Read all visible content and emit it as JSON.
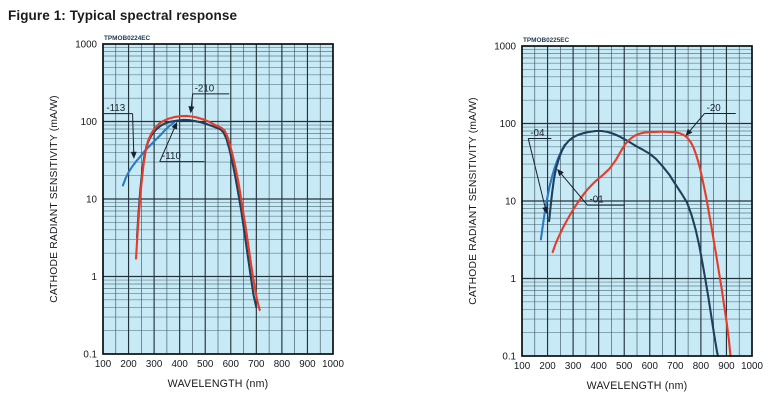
{
  "figure_title": "Figure 1: Typical spectral response",
  "colors": {
    "plot_bg": "#c8eaf6",
    "grid_major": "#22333b",
    "grid_minor_x": "#41565f",
    "grid_minor_y": "#5e7d8b",
    "border": "#0a0f12",
    "tick_text": "#14191d",
    "axis_title_text": "#14191d",
    "annotation": "#16222c",
    "id_label_color": "#1c3a57",
    "series_blue": "#2b7ac4",
    "series_dark": "#20405a",
    "series_red": "#e63c28"
  },
  "chart_data": [
    {
      "type": "line",
      "id_label": "TPMOB0224EC",
      "xlabel": "WAVELENGTH (nm)",
      "ylabel": "CATHODE RADIANT SENSITIVITY (mA/W)",
      "xlim": [
        100,
        1000
      ],
      "ylim_log": [
        0.1,
        1000
      ],
      "x_ticks": [
        100,
        200,
        300,
        400,
        500,
        600,
        700,
        800,
        900,
        1000
      ],
      "y_ticks": [
        "1000",
        "100",
        "10",
        "1",
        "0.1"
      ],
      "grid": true,
      "series": [
        {
          "name": "-113",
          "color_key": "series_blue",
          "points": [
            [
              178,
              15
            ],
            [
              190,
              19
            ],
            [
              203,
              23
            ],
            [
              217,
              27
            ],
            [
              231,
              31
            ],
            [
              245,
              35
            ],
            [
              259,
              40
            ],
            [
              273,
              45
            ],
            [
              287,
              50
            ],
            [
              301,
              56
            ],
            [
              315,
              62
            ],
            [
              329,
              69
            ],
            [
              342,
              77
            ],
            [
              355,
              85
            ],
            [
              366,
              91
            ],
            [
              378,
              97
            ]
          ]
        },
        {
          "name": "-110",
          "color_key": "series_dark",
          "points": [
            [
              233,
              3.2
            ],
            [
              239,
              6.5
            ],
            [
              246,
              13
            ],
            [
              254,
              24
            ],
            [
              262,
              36
            ],
            [
              271,
              49
            ],
            [
              282,
              60
            ],
            [
              294,
              70
            ],
            [
              308,
              79
            ],
            [
              325,
              88
            ],
            [
              345,
              95
            ],
            [
              368,
              100
            ],
            [
              392,
              103
            ],
            [
              415,
              105
            ],
            [
              438,
              104
            ],
            [
              462,
              101
            ],
            [
              486,
              97
            ],
            [
              508,
              92
            ],
            [
              528,
              87
            ],
            [
              545,
              83
            ],
            [
              560,
              79
            ],
            [
              572,
              72
            ],
            [
              583,
              60
            ],
            [
              594,
              45
            ],
            [
              605,
              31
            ],
            [
              617,
              20
            ],
            [
              629,
              12
            ],
            [
              641,
              7
            ],
            [
              653,
              3.8
            ],
            [
              665,
              2
            ],
            [
              677,
              1.05
            ],
            [
              689,
              0.58
            ],
            [
              700,
              0.4
            ]
          ]
        },
        {
          "name": "-210",
          "color_key": "series_red",
          "points": [
            [
              229,
              1.7
            ],
            [
              235,
              3.5
            ],
            [
              242,
              7.5
            ],
            [
              250,
              15
            ],
            [
              258,
              27
            ],
            [
              267,
              42
            ],
            [
              277,
              57
            ],
            [
              289,
              70
            ],
            [
              303,
              82
            ],
            [
              319,
              93
            ],
            [
              337,
              102
            ],
            [
              357,
              109
            ],
            [
              379,
              114
            ],
            [
              402,
              117
            ],
            [
              425,
              118
            ],
            [
              448,
              116
            ],
            [
              471,
              112
            ],
            [
              494,
              106
            ],
            [
              515,
              99
            ],
            [
              533,
              92
            ],
            [
              549,
              87
            ],
            [
              563,
              83
            ],
            [
              575,
              77
            ],
            [
              586,
              65
            ],
            [
              597,
              50
            ],
            [
              608,
              36
            ],
            [
              620,
              24
            ],
            [
              632,
              15
            ],
            [
              644,
              8.5
            ],
            [
              656,
              4.8
            ],
            [
              668,
              2.6
            ],
            [
              680,
              1.4
            ],
            [
              692,
              0.78
            ],
            [
              703,
              0.5
            ],
            [
              713,
              0.37
            ]
          ]
        }
      ],
      "annotations": [
        {
          "text": "-113",
          "label": [
            150,
            150
          ],
          "tip": [
            221,
            33
          ],
          "from": "right",
          "ext": 6
        },
        {
          "text": "-210",
          "label": [
            497,
            270
          ],
          "tip": [
            443,
            127
          ],
          "from": "left",
          "ext": 14
        },
        {
          "text": "-110",
          "label": [
            368,
            36
          ],
          "tip": [
            390,
            99
          ],
          "from": "left",
          "ext": 22
        }
      ]
    },
    {
      "type": "line",
      "id_label": "TPMOB0225EC",
      "xlabel": "WAVELENGTH (nm)",
      "ylabel": "CATHODE RADIANT SENSITIVITY (mA/W)",
      "xlim": [
        100,
        1000
      ],
      "ylim_log": [
        0.1,
        1000
      ],
      "x_ticks": [
        100,
        200,
        300,
        400,
        500,
        600,
        700,
        800,
        900,
        1000
      ],
      "y_ticks": [
        "1000",
        "100",
        "10",
        "1",
        "0.1"
      ],
      "grid": true,
      "series": [
        {
          "name": "-04",
          "color_key": "series_blue",
          "points": [
            [
              174,
              3.2
            ],
            [
              182,
              5
            ],
            [
              190,
              7.5
            ],
            [
              199,
              11
            ],
            [
              208,
              15.5
            ],
            [
              218,
              21
            ],
            [
              228,
              27
            ],
            [
              238,
              33.5
            ],
            [
              248,
              40
            ],
            [
              258,
              47
            ],
            [
              267,
              53
            ]
          ]
        },
        {
          "name": "-01",
          "color_key": "series_dark",
          "points": [
            [
              206,
              5.5
            ],
            [
              212,
              8.5
            ],
            [
              218,
              13
            ],
            [
              225,
              19
            ],
            [
              234,
              27
            ],
            [
              245,
              36
            ],
            [
              257,
              45
            ],
            [
              269,
              53
            ],
            [
              283,
              60
            ],
            [
              299,
              66
            ],
            [
              318,
              71
            ],
            [
              340,
              75
            ],
            [
              363,
              78
            ],
            [
              388,
              80
            ],
            [
              412,
              80
            ],
            [
              434,
              78
            ],
            [
              456,
              74
            ],
            [
              478,
              69
            ],
            [
              500,
              63
            ],
            [
              523,
              57
            ],
            [
              547,
              51
            ],
            [
              572,
              46
            ],
            [
              598,
              41
            ],
            [
              624,
              35
            ],
            [
              650,
              28
            ],
            [
              676,
              22
            ],
            [
              700,
              16.5
            ],
            [
              724,
              12.5
            ],
            [
              746,
              9.5
            ],
            [
              764,
              6.5
            ],
            [
              780,
              4.2
            ],
            [
              794,
              2.6
            ],
            [
              806,
              1.6
            ],
            [
              817,
              1
            ],
            [
              829,
              0.58
            ],
            [
              841,
              0.32
            ],
            [
              853,
              0.18
            ],
            [
              864,
              0.11
            ],
            [
              867,
              0.1
            ]
          ]
        },
        {
          "name": "-20",
          "color_key": "series_red",
          "points": [
            [
              220,
              2.2
            ],
            [
              233,
              2.9
            ],
            [
              246,
              3.6
            ],
            [
              260,
              4.5
            ],
            [
              274,
              5.5
            ],
            [
              288,
              6.6
            ],
            [
              302,
              7.9
            ],
            [
              316,
              9.3
            ],
            [
              330,
              10.9
            ],
            [
              344,
              12.6
            ],
            [
              358,
              14.3
            ],
            [
              372,
              16
            ],
            [
              386,
              17.8
            ],
            [
              400,
              19.5
            ],
            [
              414,
              21.3
            ],
            [
              428,
              23.5
            ],
            [
              442,
              26
            ],
            [
              456,
              30
            ],
            [
              468,
              34
            ],
            [
              480,
              40
            ],
            [
              492,
              47
            ],
            [
              504,
              54
            ],
            [
              516,
              60
            ],
            [
              528,
              65
            ],
            [
              542,
              70
            ],
            [
              558,
              73.5
            ],
            [
              576,
              76
            ],
            [
              598,
              77.5
            ],
            [
              622,
              78
            ],
            [
              648,
              78.5
            ],
            [
              674,
              78
            ],
            [
              698,
              77
            ],
            [
              716,
              75
            ],
            [
              732,
              71.5
            ],
            [
              746,
              66
            ],
            [
              758,
              59
            ],
            [
              770,
              50
            ],
            [
              781,
              40
            ],
            [
              791,
              31
            ],
            [
              801,
              23
            ],
            [
              811,
              16
            ],
            [
              821,
              11
            ],
            [
              831,
              7.2
            ],
            [
              841,
              4.7
            ],
            [
              851,
              3
            ],
            [
              861,
              1.9
            ],
            [
              871,
              1.2
            ],
            [
              881,
              0.75
            ],
            [
              891,
              0.45
            ],
            [
              901,
              0.27
            ],
            [
              909,
              0.17
            ],
            [
              916,
              0.1
            ]
          ]
        }
      ],
      "annotations": [
        {
          "text": "-04",
          "label": [
            160,
            76
          ],
          "tip": [
            197,
            6.8
          ],
          "from": "left",
          "ext": 6
        },
        {
          "text": "-01",
          "label": [
            392,
            10.5
          ],
          "tip": [
            237,
            26
          ],
          "from": "left",
          "ext": 20
        },
        {
          "text": "-20",
          "label": [
            850,
            160
          ],
          "tip": [
            740,
            69
          ],
          "from": "left",
          "ext": 14
        }
      ]
    }
  ]
}
